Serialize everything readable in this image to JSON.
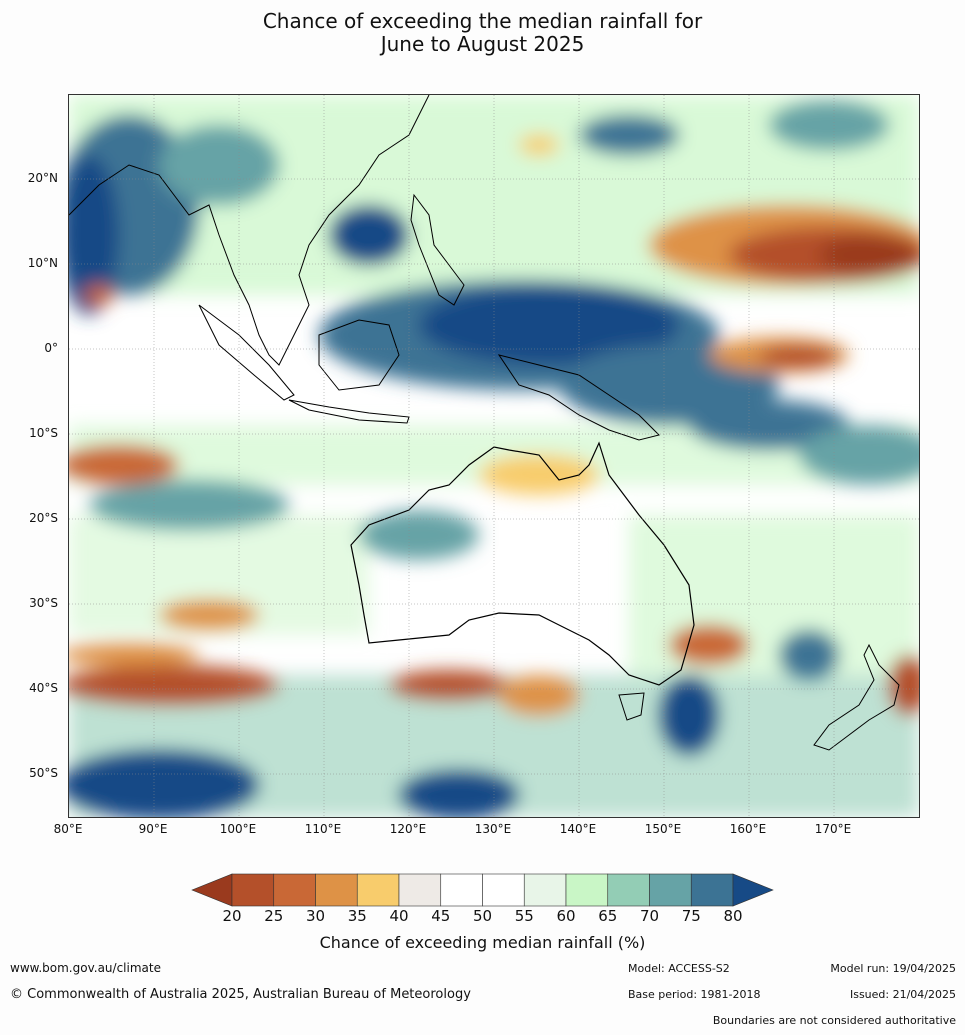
{
  "title_line1": "Chance of exceeding the median rainfall for",
  "title_line2": "June to August 2025",
  "lat_ticks": [
    "20°N",
    "10°N",
    "0°",
    "10°S",
    "20°S",
    "30°S",
    "40°S",
    "50°S"
  ],
  "lon_ticks": [
    "80°E",
    "90°E",
    "100°E",
    "110°E",
    "120°E",
    "130°E",
    "140°E",
    "150°E",
    "160°E",
    "170°E"
  ],
  "colorbar": {
    "labels": [
      "20",
      "25",
      "30",
      "35",
      "40",
      "45",
      "50",
      "55",
      "60",
      "65",
      "70",
      "75",
      "80"
    ],
    "colors": [
      "#9a3a1e",
      "#b4502a",
      "#c96836",
      "#de9246",
      "#f8cc6c",
      "#eeeae6",
      "#ffffff",
      "#ffffff",
      "#e8f5e8",
      "#c9f6c6",
      "#93cdb5",
      "#66a3a6",
      "#3c7394",
      "#174a86"
    ],
    "title": "Chance of exceeding median rainfall (%)"
  },
  "footer": {
    "website": "www.bom.gov.au/climate",
    "copyright": "© Commonwealth of Australia 2025, Australian Bureau of Meteorology",
    "model": "Model: ACCESS-S2",
    "base_period": "Base period: 1981-2018",
    "model_run": "Model run: 19/04/2025",
    "issued": "Issued: 21/04/2025",
    "disclaimer": "Boundaries are not considered authoritative"
  }
}
